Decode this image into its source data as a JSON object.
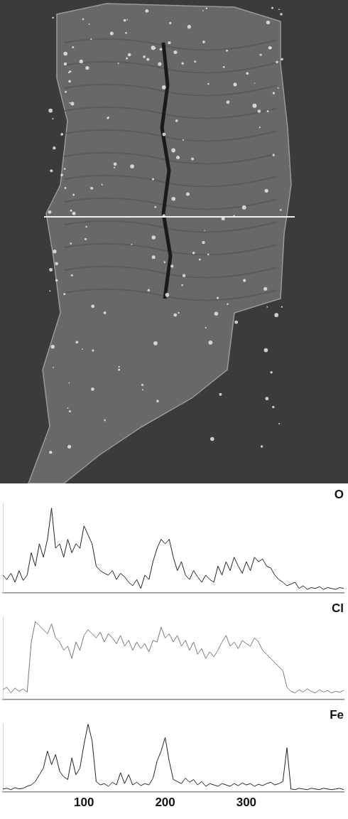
{
  "chart_data": [
    {
      "type": "line",
      "title": "O",
      "color": "#222222",
      "grid": false,
      "tick_labels": false,
      "xlim": [
        0,
        420
      ],
      "ylim": [
        0,
        100
      ],
      "x": [
        0,
        5,
        10,
        15,
        20,
        25,
        30,
        35,
        40,
        45,
        50,
        55,
        60,
        65,
        70,
        75,
        80,
        85,
        90,
        95,
        100,
        105,
        110,
        115,
        120,
        125,
        130,
        135,
        140,
        145,
        150,
        155,
        160,
        165,
        170,
        175,
        180,
        185,
        190,
        195,
        200,
        205,
        210,
        215,
        220,
        225,
        230,
        235,
        240,
        245,
        250,
        255,
        260,
        265,
        270,
        275,
        280,
        285,
        290,
        295,
        300,
        305,
        310,
        315,
        320,
        325,
        330,
        335,
        340,
        345,
        350,
        355,
        360,
        365,
        370,
        375,
        380,
        385,
        390,
        395,
        400,
        405,
        410,
        415,
        420
      ],
      "values": [
        20,
        15,
        22,
        12,
        25,
        14,
        20,
        45,
        30,
        55,
        40,
        60,
        95,
        50,
        55,
        40,
        60,
        45,
        55,
        50,
        75,
        65,
        55,
        30,
        25,
        22,
        20,
        25,
        15,
        22,
        18,
        12,
        8,
        15,
        5,
        20,
        15,
        35,
        50,
        60,
        55,
        60,
        40,
        25,
        35,
        20,
        15,
        25,
        18,
        12,
        20,
        15,
        12,
        30,
        20,
        35,
        25,
        40,
        30,
        22,
        35,
        25,
        40,
        35,
        38,
        30,
        28,
        20,
        15,
        12,
        8,
        10,
        12,
        5,
        8,
        4,
        6,
        5,
        7,
        4,
        6,
        5,
        4,
        6,
        5
      ]
    },
    {
      "type": "line",
      "title": "Cl",
      "color": "#777777",
      "grid": false,
      "tick_labels": false,
      "xlim": [
        0,
        420
      ],
      "ylim": [
        0,
        100
      ],
      "x": [
        0,
        5,
        10,
        15,
        20,
        25,
        30,
        35,
        40,
        45,
        50,
        55,
        60,
        65,
        70,
        75,
        80,
        85,
        90,
        95,
        100,
        105,
        110,
        115,
        120,
        125,
        130,
        135,
        140,
        145,
        150,
        155,
        160,
        165,
        170,
        175,
        180,
        185,
        190,
        195,
        200,
        205,
        210,
        215,
        220,
        225,
        230,
        235,
        240,
        245,
        250,
        255,
        260,
        265,
        270,
        275,
        280,
        285,
        290,
        295,
        300,
        305,
        310,
        315,
        320,
        325,
        330,
        335,
        340,
        345,
        350,
        355,
        360,
        365,
        370,
        375,
        380,
        385,
        390,
        395,
        400,
        405,
        410,
        415,
        420
      ],
      "values": [
        12,
        15,
        8,
        14,
        10,
        13,
        9,
        70,
        95,
        90,
        85,
        80,
        92,
        75,
        70,
        60,
        65,
        50,
        70,
        60,
        78,
        85,
        80,
        75,
        82,
        70,
        80,
        75,
        68,
        78,
        65,
        72,
        60,
        70,
        62,
        68,
        58,
        72,
        70,
        88,
        75,
        80,
        70,
        78,
        65,
        72,
        60,
        70,
        55,
        62,
        50,
        58,
        52,
        60,
        70,
        78,
        65,
        70,
        62,
        72,
        68,
        65,
        75,
        70,
        60,
        55,
        50,
        45,
        40,
        35,
        15,
        10,
        8,
        12,
        9,
        13,
        10,
        8,
        12,
        9,
        11,
        8,
        10,
        9,
        11
      ]
    },
    {
      "type": "line",
      "title": "Fe",
      "color": "#222222",
      "grid": false,
      "tick_labels": "x",
      "xlim": [
        0,
        420
      ],
      "xticks": [
        100,
        200,
        300
      ],
      "ylim": [
        0,
        100
      ],
      "x": [
        0,
        5,
        10,
        15,
        20,
        25,
        30,
        35,
        40,
        45,
        50,
        55,
        60,
        65,
        70,
        75,
        80,
        85,
        90,
        95,
        100,
        105,
        110,
        115,
        120,
        125,
        130,
        135,
        140,
        145,
        150,
        155,
        160,
        165,
        170,
        175,
        180,
        185,
        190,
        195,
        200,
        205,
        210,
        215,
        220,
        225,
        230,
        235,
        240,
        245,
        250,
        255,
        260,
        265,
        270,
        275,
        280,
        285,
        290,
        295,
        300,
        305,
        310,
        315,
        320,
        325,
        330,
        335,
        340,
        345,
        350,
        355,
        360,
        365,
        370,
        375,
        380,
        385,
        390,
        395,
        400,
        405,
        410,
        415,
        420
      ],
      "values": [
        4,
        5,
        3,
        6,
        4,
        5,
        8,
        10,
        15,
        25,
        35,
        60,
        40,
        55,
        30,
        22,
        18,
        50,
        25,
        35,
        70,
        100,
        75,
        15,
        10,
        12,
        8,
        14,
        10,
        28,
        12,
        25,
        10,
        14,
        9,
        12,
        10,
        20,
        45,
        60,
        80,
        45,
        18,
        15,
        12,
        20,
        14,
        18,
        10,
        15,
        8,
        12,
        10,
        8,
        12,
        10,
        8,
        12,
        9,
        13,
        10,
        12,
        8,
        11,
        9,
        12,
        14,
        10,
        12,
        15,
        65,
        4,
        3,
        5,
        4,
        3,
        5,
        4,
        3,
        5,
        4,
        3,
        4,
        5,
        3
      ]
    }
  ]
}
